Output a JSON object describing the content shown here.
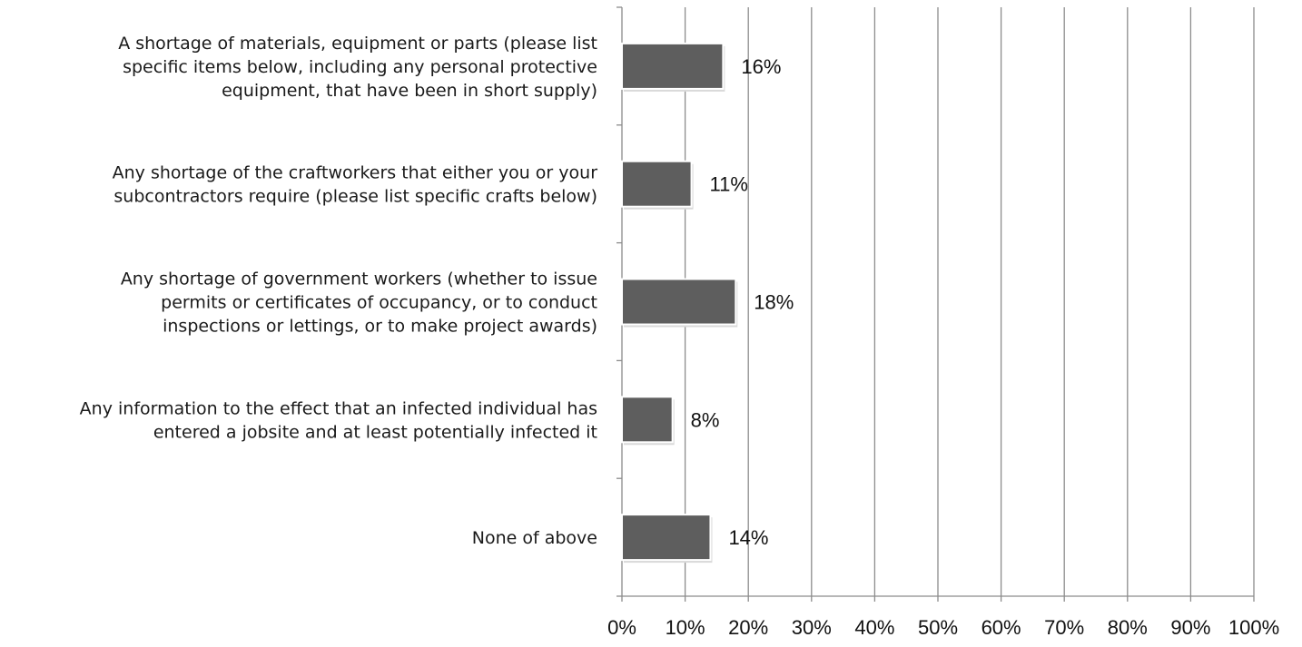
{
  "chart_data": {
    "type": "bar",
    "orientation": "horizontal",
    "categories": [
      [
        "A shortage of materials, equipment or parts (please list",
        "specific items below, including any personal protective",
        "equipment, that have been in short supply)"
      ],
      [
        "Any shortage of the craftworkers that either you or your",
        "subcontractors require (please list specific crafts below)"
      ],
      [
        "Any shortage of government workers (whether to issue",
        "permits or certificates of occupancy, or to conduct",
        "inspections or lettings, or to make project awards)"
      ],
      [
        "Any information to the effect that an infected individual has",
        "entered a jobsite and at least potentially infected it"
      ],
      [
        "None of above"
      ]
    ],
    "values": [
      16,
      11,
      18,
      8,
      14
    ],
    "value_labels": [
      "16%",
      "11%",
      "18%",
      "8%",
      "14%"
    ],
    "x_ticks": [
      0,
      10,
      20,
      30,
      40,
      50,
      60,
      70,
      80,
      90,
      100
    ],
    "x_tick_labels": [
      "0%",
      "10%",
      "20%",
      "30%",
      "40%",
      "50%",
      "60%",
      "70%",
      "80%",
      "90%",
      "100%"
    ],
    "xlim": [
      0,
      100
    ],
    "grid": "vertical",
    "legend": "none",
    "title": "",
    "xlabel": "",
    "ylabel": ""
  },
  "colors": {
    "bar": "#5e5e5e",
    "grid": "#8c8c8c",
    "axis": "#8c8c8c",
    "bar_shadow": "#d9d9d9"
  }
}
